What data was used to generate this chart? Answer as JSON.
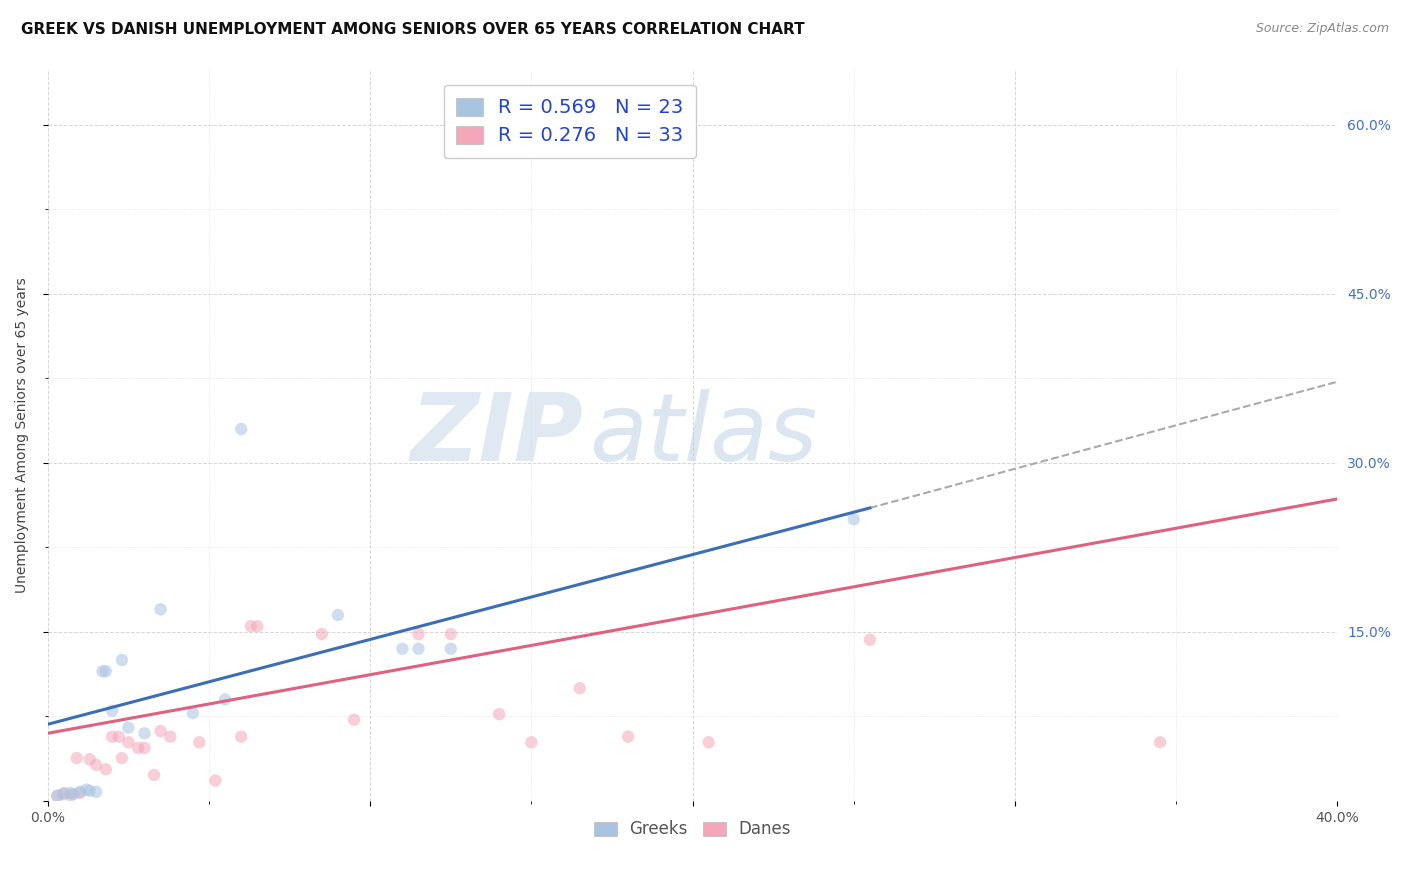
{
  "title": "GREEK VS DANISH UNEMPLOYMENT AMONG SENIORS OVER 65 YEARS CORRELATION CHART",
  "source": "Source: ZipAtlas.com",
  "ylabel": "Unemployment Among Seniors over 65 years",
  "xlim": [
    0.0,
    0.4
  ],
  "ylim": [
    0.0,
    0.65
  ],
  "background_color": "#ffffff",
  "grid_color": "#cccccc",
  "watermark_text": "ZIP",
  "watermark_text2": "atlas",
  "greek_color": "#a8c4e0",
  "danish_color": "#f4a7b9",
  "greek_line_color": "#3c6eb4",
  "danish_line_color": "#e06080",
  "dashed_line_color": "#aaaaaa",
  "greek_points": [
    [
      0.003,
      0.005
    ],
    [
      0.005,
      0.006
    ],
    [
      0.007,
      0.007
    ],
    [
      0.008,
      0.006
    ],
    [
      0.01,
      0.008
    ],
    [
      0.012,
      0.01
    ],
    [
      0.013,
      0.009
    ],
    [
      0.015,
      0.008
    ],
    [
      0.017,
      0.115
    ],
    [
      0.018,
      0.115
    ],
    [
      0.02,
      0.08
    ],
    [
      0.023,
      0.125
    ],
    [
      0.025,
      0.065
    ],
    [
      0.03,
      0.06
    ],
    [
      0.035,
      0.17
    ],
    [
      0.045,
      0.078
    ],
    [
      0.055,
      0.09
    ],
    [
      0.06,
      0.33
    ],
    [
      0.09,
      0.165
    ],
    [
      0.11,
      0.135
    ],
    [
      0.115,
      0.135
    ],
    [
      0.125,
      0.135
    ],
    [
      0.25,
      0.25
    ]
  ],
  "danish_points": [
    [
      0.003,
      0.004
    ],
    [
      0.005,
      0.007
    ],
    [
      0.007,
      0.005
    ],
    [
      0.009,
      0.038
    ],
    [
      0.01,
      0.007
    ],
    [
      0.013,
      0.037
    ],
    [
      0.015,
      0.032
    ],
    [
      0.018,
      0.028
    ],
    [
      0.02,
      0.057
    ],
    [
      0.022,
      0.057
    ],
    [
      0.023,
      0.038
    ],
    [
      0.025,
      0.052
    ],
    [
      0.028,
      0.047
    ],
    [
      0.03,
      0.047
    ],
    [
      0.033,
      0.023
    ],
    [
      0.035,
      0.062
    ],
    [
      0.038,
      0.057
    ],
    [
      0.047,
      0.052
    ],
    [
      0.052,
      0.018
    ],
    [
      0.06,
      0.057
    ],
    [
      0.063,
      0.155
    ],
    [
      0.065,
      0.155
    ],
    [
      0.085,
      0.148
    ],
    [
      0.095,
      0.072
    ],
    [
      0.115,
      0.148
    ],
    [
      0.125,
      0.148
    ],
    [
      0.14,
      0.077
    ],
    [
      0.15,
      0.052
    ],
    [
      0.165,
      0.1
    ],
    [
      0.18,
      0.057
    ],
    [
      0.205,
      0.052
    ],
    [
      0.255,
      0.143
    ],
    [
      0.345,
      0.052
    ]
  ],
  "greek_trendline": [
    [
      0.0,
      0.068
    ],
    [
      0.255,
      0.26
    ]
  ],
  "greek_dashed_trendline": [
    [
      0.255,
      0.26
    ],
    [
      0.4,
      0.372
    ]
  ],
  "danish_trendline": [
    [
      0.0,
      0.06
    ],
    [
      0.4,
      0.268
    ]
  ],
  "title_fontsize": 11,
  "axis_label_fontsize": 10,
  "tick_fontsize": 10,
  "legend_fontsize": 13,
  "source_fontsize": 9,
  "marker_size": 80,
  "marker_alpha": 0.55
}
